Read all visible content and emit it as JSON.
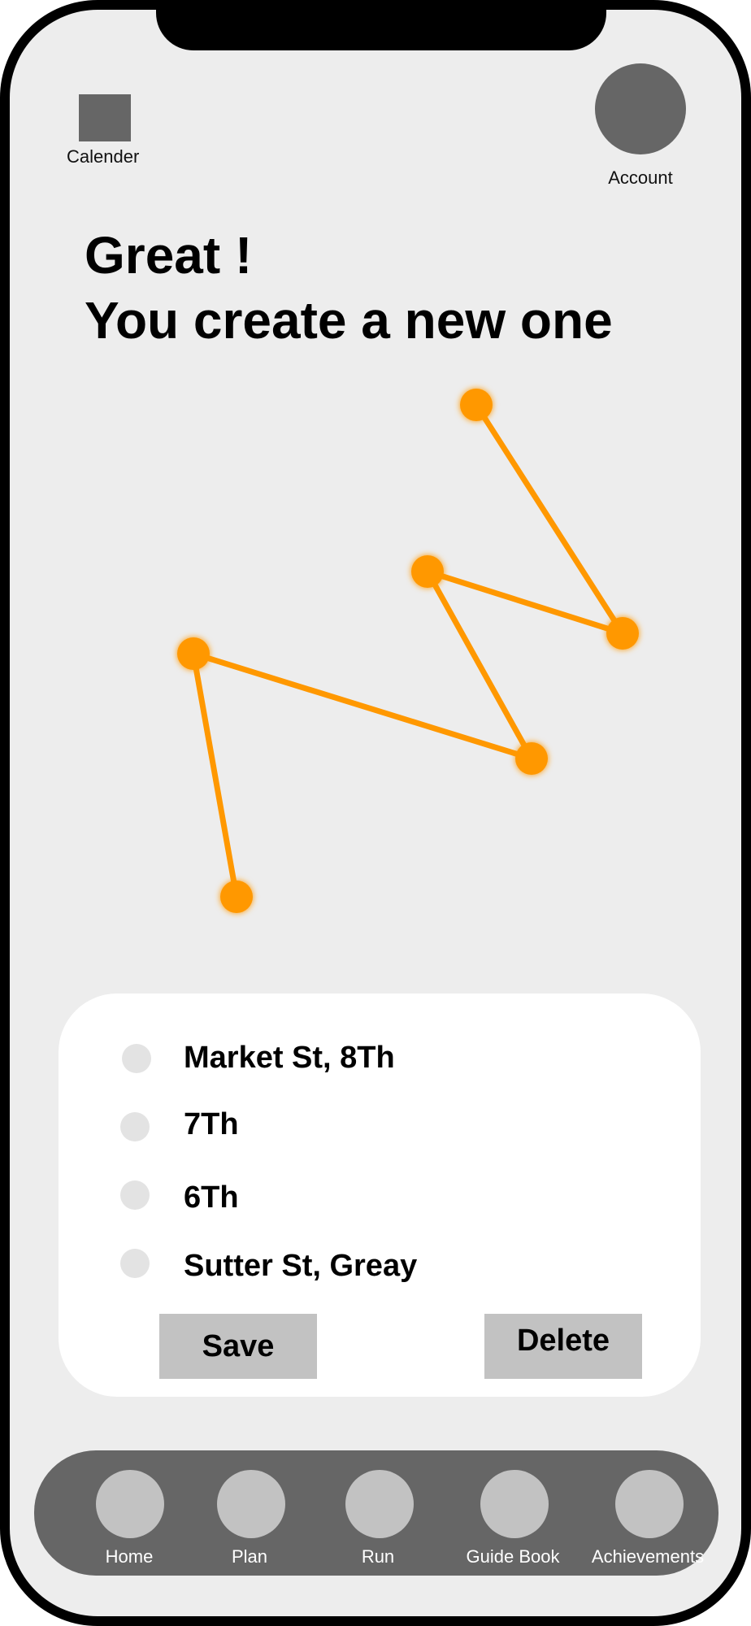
{
  "header": {
    "calendar_label": "Calender",
    "account_label": "Account"
  },
  "headline": {
    "line1": "Great !",
    "line2": "You create a new one"
  },
  "route": {
    "color": "#ff9800",
    "points": 6
  },
  "stops": [
    {
      "label": "Market St, 8Th"
    },
    {
      "label": "7Th"
    },
    {
      "label": "6Th"
    },
    {
      "label": "Sutter St, Greay"
    }
  ],
  "actions": {
    "save_label": "Save",
    "delete_label": "Delete"
  },
  "nav": {
    "items": [
      {
        "label": "Home"
      },
      {
        "label": "Plan"
      },
      {
        "label": "Run"
      },
      {
        "label": "Guide Book"
      },
      {
        "label": "Achievements"
      }
    ]
  }
}
